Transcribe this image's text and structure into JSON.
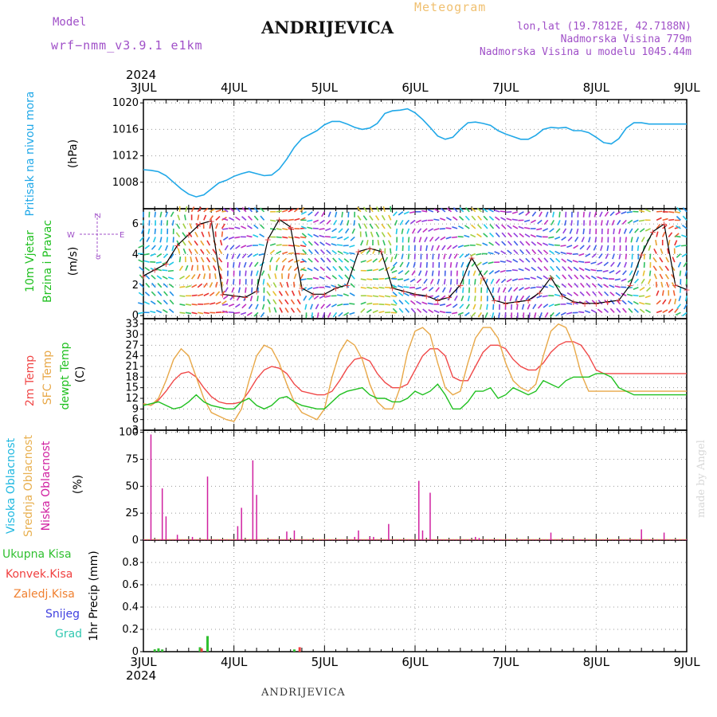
{
  "header": {
    "title": "ANDRIJEVICA",
    "meteogram": "Meteogram",
    "model_label": "Model",
    "model_name": "wrf−nmm_v3.9.1  e1km",
    "lonlat": "lon,lat (19.7812E, 42.7188N)",
    "altitude": "Nadmorska Visina 779m",
    "model_altitude": "Nadmorska Visina u modelu 1045.44m"
  },
  "footer": {
    "station": "ANDRIJEVICA",
    "credit": "made by Angel"
  },
  "colors": {
    "pressure": "#20a8e8",
    "t2m": "#f04848",
    "sfc": "#e8a848",
    "dewpt": "#20c020",
    "high_cloud": "#20b8e0",
    "mid_cloud": "#e8b050",
    "low_cloud": "#d020a0",
    "total_precip": "#30c030",
    "conv_precip": "#f04040",
    "frozen_precip": "#f08030",
    "snow": "#4040e0",
    "hail": "#30c8b0",
    "wind_label": "#20c020",
    "compass": "#a050c8"
  },
  "chart_data": [
    {
      "type": "line",
      "ylabel_main": "Pritisak na nivou mora",
      "ylabel_unit": "(hPa)",
      "year": "2024",
      "x_ticks": [
        "3JUL",
        "4JUL",
        "5JUL",
        "6JUL",
        "7JUL",
        "8JUL",
        "9JUL"
      ],
      "xlim": [
        0,
        144
      ],
      "ylim": [
        1004,
        1020.5
      ],
      "y_ticks": [
        1008,
        1012,
        1016,
        1020
      ],
      "grid": true,
      "series": [
        {
          "x": [
            0,
            2,
            4,
            6,
            8,
            10,
            12,
            14,
            16,
            18,
            20,
            22,
            24,
            26,
            28,
            30,
            32,
            34,
            36,
            38,
            40,
            42,
            44,
            46,
            48,
            50,
            52,
            54,
            56,
            58,
            60,
            62,
            64,
            66,
            68,
            70,
            72,
            74,
            76,
            78,
            80,
            82,
            84,
            86,
            88,
            90,
            92,
            94,
            96,
            98,
            100,
            102,
            104,
            106,
            108,
            110,
            112,
            114,
            116,
            118,
            120,
            122,
            124,
            126,
            128,
            130,
            132,
            134,
            136,
            138,
            140,
            142,
            144
          ],
          "values": [
            1009.9,
            1009.8,
            1009.6,
            1009.0,
            1008.0,
            1007.0,
            1006.2,
            1005.8,
            1006.1,
            1007.0,
            1007.9,
            1008.3,
            1008.9,
            1009.3,
            1009.6,
            1009.3,
            1009.0,
            1009.1,
            1010.0,
            1011.5,
            1013.3,
            1014.6,
            1015.2,
            1015.8,
            1016.7,
            1017.2,
            1017.2,
            1016.8,
            1016.3,
            1016.0,
            1016.2,
            1016.9,
            1018.4,
            1018.8,
            1018.9,
            1019.1,
            1018.5,
            1017.5,
            1016.3,
            1015.0,
            1014.5,
            1014.8,
            1016.0,
            1017.0,
            1017.1,
            1016.9,
            1016.6,
            1015.8,
            1015.3,
            1014.9,
            1014.5,
            1014.5,
            1015.1,
            1016.0,
            1016.3,
            1016.2,
            1016.3,
            1015.8,
            1015.8,
            1015.5,
            1014.8,
            1014.0,
            1013.8,
            1014.6,
            1016.2,
            1017.0,
            1017.0,
            1016.8,
            1016.8,
            1016.8,
            1016.8,
            1016.8,
            1016.8
          ]
        }
      ]
    },
    {
      "type": "scatter",
      "ylabel_main": "10m Vjetar",
      "ylabel_sub": "Brzina i Pravac",
      "ylabel_unit": "(m/s)",
      "ylim": [
        -0.2,
        7
      ],
      "y_ticks": [
        0,
        2,
        4,
        6
      ],
      "compass": {
        "n": "Z",
        "s": "α",
        "w": "W",
        "e": "E"
      },
      "series": [
        {
          "x": [
            0,
            3,
            6,
            9,
            12,
            15,
            18,
            21,
            24,
            27,
            30,
            33,
            36,
            39,
            42,
            45,
            48,
            51,
            54,
            57,
            60,
            63,
            66,
            69,
            72,
            75,
            78,
            81,
            84,
            87,
            90,
            93,
            96,
            99,
            102,
            105,
            108,
            111,
            114,
            117,
            120,
            123,
            126,
            129,
            132,
            135,
            138,
            141,
            144
          ],
          "values": [
            2.6,
            3.0,
            3.4,
            4.6,
            5.3,
            6.0,
            6.2,
            1.4,
            1.3,
            1.2,
            1.6,
            5.0,
            6.3,
            5.8,
            1.8,
            1.4,
            1.4,
            1.8,
            2.0,
            4.2,
            4.4,
            4.2,
            1.8,
            1.6,
            1.4,
            1.3,
            1.0,
            1.2,
            2.0,
            3.8,
            2.5,
            1.0,
            0.8,
            0.9,
            1.0,
            1.5,
            2.5,
            1.3,
            0.9,
            0.8,
            0.8,
            0.9,
            1.0,
            2.0,
            4.0,
            5.5,
            6.0,
            2.0,
            1.7
          ]
        }
      ]
    },
    {
      "type": "line",
      "ylabel_t2m": "2m Temp",
      "ylabel_sfc": "SFC Temp",
      "ylabel_dew": "dewpt Temp",
      "ylabel_unit": "(C)",
      "ylim": [
        3,
        34.5
      ],
      "y_ticks": [
        3,
        6,
        9,
        12,
        15,
        18,
        21,
        24,
        27,
        30,
        33
      ],
      "series": [
        {
          "name": "2m Temp",
          "x": [
            0,
            2,
            4,
            6,
            8,
            10,
            12,
            14,
            16,
            18,
            20,
            22,
            24,
            26,
            28,
            30,
            32,
            34,
            36,
            38,
            40,
            42,
            44,
            46,
            48,
            50,
            52,
            54,
            56,
            58,
            60,
            62,
            64,
            66,
            68,
            70,
            72,
            74,
            76,
            78,
            80,
            82,
            84,
            86,
            88,
            90,
            92,
            94,
            96,
            98,
            100,
            102,
            104,
            106,
            108,
            110,
            112,
            114,
            116,
            118,
            120,
            122,
            124,
            126,
            128,
            130,
            132,
            134,
            136,
            138,
            140,
            142,
            144
          ],
          "values": [
            10.5,
            10,
            11.5,
            14,
            17,
            19,
            19.5,
            18,
            15,
            12.5,
            11,
            10.5,
            10.5,
            11,
            14,
            17.5,
            20,
            21,
            20.5,
            19,
            16,
            14,
            13.5,
            13,
            13,
            14,
            17,
            20.5,
            23,
            23.5,
            22.5,
            19,
            16.5,
            15,
            15,
            16,
            20,
            24,
            26,
            26,
            24,
            18,
            17,
            17,
            21,
            25,
            27,
            27,
            26,
            23,
            21,
            20,
            20,
            22,
            25,
            27,
            28,
            28,
            27,
            24,
            20,
            19,
            19,
            19,
            19,
            19,
            19,
            19,
            19,
            19,
            19,
            19,
            19
          ]
        },
        {
          "name": "SFC Temp",
          "x": [
            0,
            2,
            4,
            6,
            8,
            10,
            12,
            14,
            16,
            18,
            20,
            22,
            24,
            26,
            28,
            30,
            32,
            34,
            36,
            38,
            40,
            42,
            44,
            46,
            48,
            50,
            52,
            54,
            56,
            58,
            60,
            62,
            64,
            66,
            68,
            70,
            72,
            74,
            76,
            78,
            80,
            82,
            84,
            86,
            88,
            90,
            92,
            94,
            96,
            98,
            100,
            102,
            104,
            106,
            108,
            110,
            112,
            114,
            116,
            118,
            120,
            122,
            124,
            126,
            128,
            130,
            132,
            134,
            136,
            138,
            140,
            142,
            144
          ],
          "values": [
            10.5,
            10,
            12,
            17,
            23,
            26,
            24,
            18,
            12,
            8,
            7,
            6,
            5.5,
            9,
            17,
            24,
            27,
            26,
            22,
            16,
            11,
            8,
            7,
            6,
            9,
            18,
            25,
            28.5,
            27,
            23,
            16,
            11,
            9,
            9,
            15,
            25,
            31,
            32,
            30,
            22,
            15,
            13,
            14,
            22,
            29,
            32,
            32,
            29,
            22,
            17,
            15,
            14,
            16,
            24,
            31,
            33,
            32,
            27,
            19,
            14,
            14,
            14,
            14,
            14,
            14,
            14,
            14,
            14,
            14,
            14,
            14,
            14,
            14
          ]
        },
        {
          "name": "dewpt Temp",
          "x": [
            0,
            2,
            4,
            6,
            8,
            10,
            12,
            14,
            16,
            18,
            20,
            22,
            24,
            26,
            28,
            30,
            32,
            34,
            36,
            38,
            40,
            42,
            44,
            46,
            48,
            50,
            52,
            54,
            56,
            58,
            60,
            62,
            64,
            66,
            68,
            70,
            72,
            74,
            76,
            78,
            80,
            82,
            84,
            86,
            88,
            90,
            92,
            94,
            96,
            98,
            100,
            102,
            104,
            106,
            108,
            110,
            112,
            114,
            116,
            118,
            120,
            122,
            124,
            126,
            128,
            130,
            132,
            134,
            136,
            138,
            140,
            142,
            144
          ],
          "values": [
            10,
            10.5,
            11,
            10,
            9,
            9.5,
            11,
            13,
            11,
            10,
            9.5,
            9,
            9,
            11,
            12,
            10,
            9,
            10,
            12,
            12.5,
            11,
            10,
            9.5,
            9,
            9,
            11,
            13,
            14,
            14.5,
            15,
            13,
            12,
            12,
            11,
            11,
            12,
            14,
            13,
            14,
            16,
            13,
            9,
            9,
            11,
            14,
            14,
            15,
            12,
            13,
            15,
            14,
            13,
            14,
            17,
            16,
            15,
            17,
            18,
            18,
            18,
            19,
            19,
            18,
            15,
            14,
            13,
            13,
            13,
            13,
            13,
            13,
            13,
            13
          ]
        }
      ]
    },
    {
      "type": "bar",
      "ylabel_high": "Visoka Oblacnost",
      "ylabel_mid": "Srednja Oblacnost",
      "ylabel_low": "Niska Oblacnost",
      "ylabel_unit": "(%)",
      "ylim": [
        0,
        102
      ],
      "y_ticks": [
        0,
        25,
        50,
        75,
        100
      ],
      "series": [
        {
          "name": "Niska Oblacnost",
          "x": [
            2,
            5,
            6,
            9,
            13,
            17,
            25,
            26,
            29,
            30,
            38,
            40,
            56,
            57,
            60,
            61,
            65,
            73,
            74,
            76,
            88,
            89,
            108,
            132,
            138
          ],
          "values": [
            98,
            48,
            22,
            5,
            3,
            59,
            13,
            30,
            74,
            42,
            8,
            9,
            3,
            9,
            3,
            3,
            15,
            55,
            9,
            44,
            3,
            2,
            7,
            10,
            7
          ]
        }
      ]
    },
    {
      "type": "bar",
      "ylabel_total": "Ukupna Kisa",
      "ylabel_conv": "Konvek.Kisa",
      "ylabel_frozen": "Zaledj.Kisa",
      "ylabel_snow": "Snijeg",
      "ylabel_hail": "Grad",
      "ylabel_unit": "1hr Precip (mm)",
      "year": "2024",
      "ylim": [
        0,
        1.0
      ],
      "y_ticks": [
        0,
        0.2,
        0.4,
        0.6,
        0.8
      ],
      "series": [
        {
          "name": "Ukupna Kisa",
          "x": [
            3,
            4,
            5,
            15,
            17,
            40
          ],
          "values": [
            0.02,
            0.03,
            0.02,
            0.04,
            0.14,
            0.02
          ]
        },
        {
          "name": "Konvek.Kisa",
          "x": [
            15,
            41
          ],
          "values": [
            0.03,
            0.04
          ]
        }
      ]
    }
  ]
}
